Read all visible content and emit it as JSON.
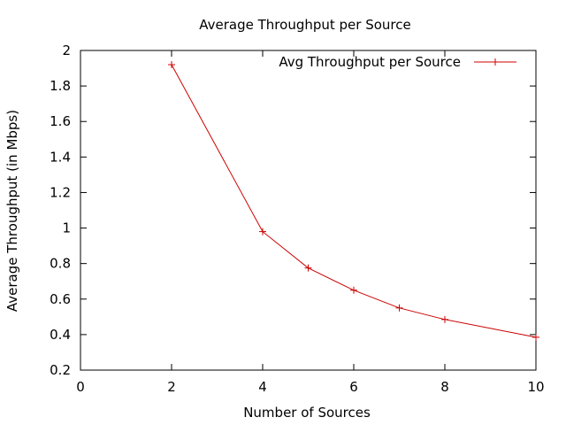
{
  "chart_data": {
    "type": "line",
    "title": "Average Throughput per Source",
    "xlabel": "Number of Sources",
    "ylabel": "Average Throughput (in Mbps)",
    "xlim": [
      0,
      10
    ],
    "ylim": [
      0.2,
      2
    ],
    "xticks": [
      0,
      2,
      4,
      6,
      8,
      10
    ],
    "yticks": [
      0.2,
      0.4,
      0.6,
      0.8,
      1,
      1.2,
      1.4,
      1.6,
      1.8,
      2
    ],
    "xtick_labels": [
      "0",
      "2",
      "4",
      "6",
      "8",
      "10"
    ],
    "ytick_labels": [
      "0.2",
      "0.4",
      "0.6",
      "0.8",
      "1",
      "1.2",
      "1.4",
      "1.6",
      "1.8",
      "2"
    ],
    "grid": false,
    "legend_position": "top-right",
    "series": [
      {
        "name": "Avg Throughput per Source",
        "color": "#cc0000",
        "marker": "plus",
        "x": [
          2,
          4,
          5,
          6,
          7,
          8,
          10
        ],
        "y": [
          1.92,
          0.98,
          0.775,
          0.65,
          0.55,
          0.485,
          0.385
        ]
      }
    ]
  }
}
